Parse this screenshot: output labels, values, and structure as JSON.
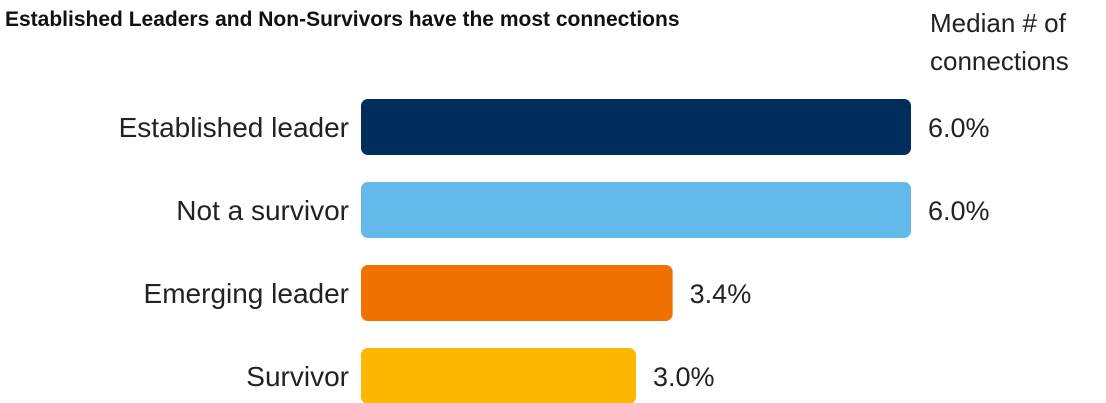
{
  "chart_data": {
    "type": "bar",
    "orientation": "horizontal",
    "title": "Established Leaders and Non-Survivors have the most connections",
    "value_header": "Median # of connections",
    "categories": [
      "Established leader",
      "Not a survivor",
      "Emerging leader",
      "Survivor"
    ],
    "values": [
      6.0,
      6.0,
      3.4,
      3.0
    ],
    "value_labels": [
      "6.0%",
      "6.0%",
      "3.4%",
      "3.0%"
    ],
    "colors": [
      "#002d5b",
      "#63b9e9",
      "#ef7200",
      "#fdb700"
    ],
    "xlim": [
      0,
      6.0
    ],
    "grid": false,
    "legend": "none"
  }
}
